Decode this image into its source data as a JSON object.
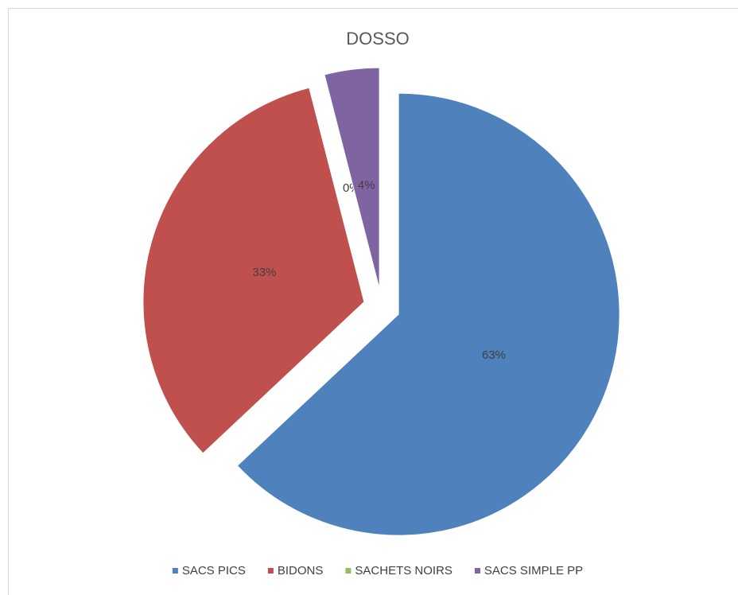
{
  "chart_data": {
    "type": "pie",
    "title": "DOSSO",
    "categories": [
      "SACS PICS",
      "BIDONS",
      "SACHETS NOIRS",
      "SACS SIMPLE PP"
    ],
    "values": [
      63,
      33,
      0,
      4
    ],
    "value_labels": [
      "63%",
      "33%",
      "0%",
      "4%"
    ],
    "colors": [
      "#4f81bd",
      "#c0504d",
      "#9bbb59",
      "#8064a2"
    ],
    "legend": "bottom"
  }
}
